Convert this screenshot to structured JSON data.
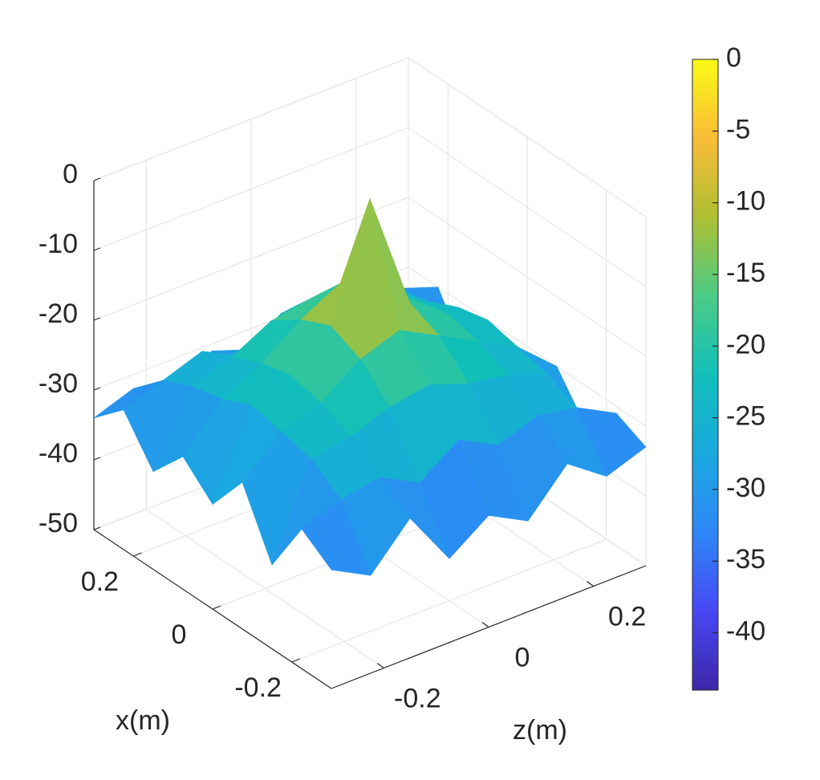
{
  "chart_data": {
    "type": "surface",
    "x_label": "x(m)",
    "z_label": "z(m)",
    "x": [
      -0.3,
      -0.225,
      -0.15,
      -0.075,
      0,
      0.075,
      0.15,
      0.225,
      0.3
    ],
    "z": [
      -0.3,
      -0.225,
      -0.15,
      -0.075,
      0,
      0.075,
      0.15,
      0.225,
      0.3
    ],
    "values": [
      [
        -33,
        -36,
        -30,
        -38,
        -34,
        -37,
        -31,
        -35,
        -33
      ],
      [
        -30,
        -28,
        -27,
        -30,
        -26,
        -29,
        -27,
        -28,
        -31
      ],
      [
        -38,
        -25,
        -24,
        -22,
        -21,
        -23,
        -24,
        -26,
        -36
      ],
      [
        -29,
        -24,
        -22,
        -18,
        -16,
        -19,
        -22,
        -25,
        -30
      ],
      [
        -35,
        -23,
        -21,
        -16,
        0,
        -17,
        -21,
        -24,
        -40
      ],
      [
        -31,
        -25,
        -22,
        -18,
        -15,
        -18,
        -22,
        -25,
        -32
      ],
      [
        -36,
        -26,
        -24,
        -21,
        -20,
        -22,
        -23,
        -27,
        -38
      ],
      [
        -30,
        -28,
        -26,
        -29,
        -25,
        -27,
        -26,
        -28,
        -30
      ],
      [
        -34,
        -32,
        -35,
        -31,
        -33,
        -30,
        -34,
        -32,
        -33
      ]
    ],
    "xlim": [
      -0.3,
      0.3
    ],
    "xticks": [
      -0.2,
      0,
      0.2
    ],
    "zlim": [
      -0.3,
      0.3
    ],
    "zticks": [
      -0.2,
      0,
      0.2
    ],
    "ylim": [
      -50,
      0
    ],
    "yticks": [
      -50,
      -40,
      -30,
      -20,
      -10,
      0
    ],
    "clim": [
      -44,
      0
    ],
    "cticks": [
      -40,
      -35,
      -30,
      -25,
      -20,
      -15,
      -10,
      -5,
      0
    ],
    "colormap": [
      "#3e26a8",
      "#4748f4",
      "#2e87f7",
      "#1aa9df",
      "#11bfb9",
      "#4bcb85",
      "#aebf32",
      "#f9bc38",
      "#f9fb15"
    ],
    "grid": true
  }
}
